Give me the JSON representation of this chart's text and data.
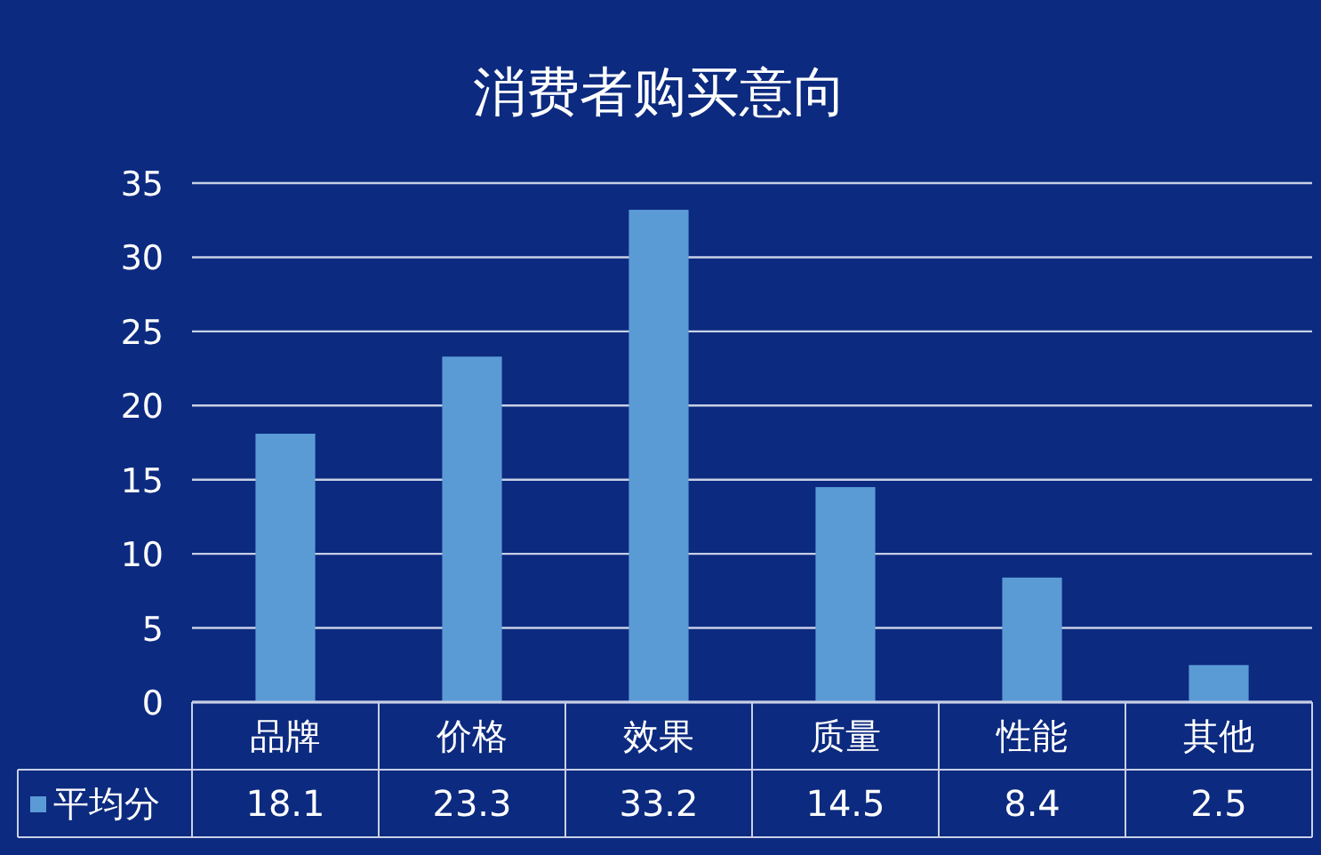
{
  "chart_data": {
    "type": "bar",
    "title": "消费者购买意向",
    "categories": [
      "品牌",
      "价格",
      "效果",
      "质量",
      "性能",
      "其他"
    ],
    "series": [
      {
        "name": "平均分",
        "color": "#5b9bd5",
        "values": [
          18.1,
          23.3,
          33.2,
          14.5,
          8.4,
          2.5
        ]
      }
    ],
    "ylim": [
      0,
      35
    ],
    "yticks": [
      0,
      5,
      10,
      15,
      20,
      25,
      30,
      35
    ],
    "grid": "y",
    "data_labels": true,
    "legend": "bottom"
  }
}
